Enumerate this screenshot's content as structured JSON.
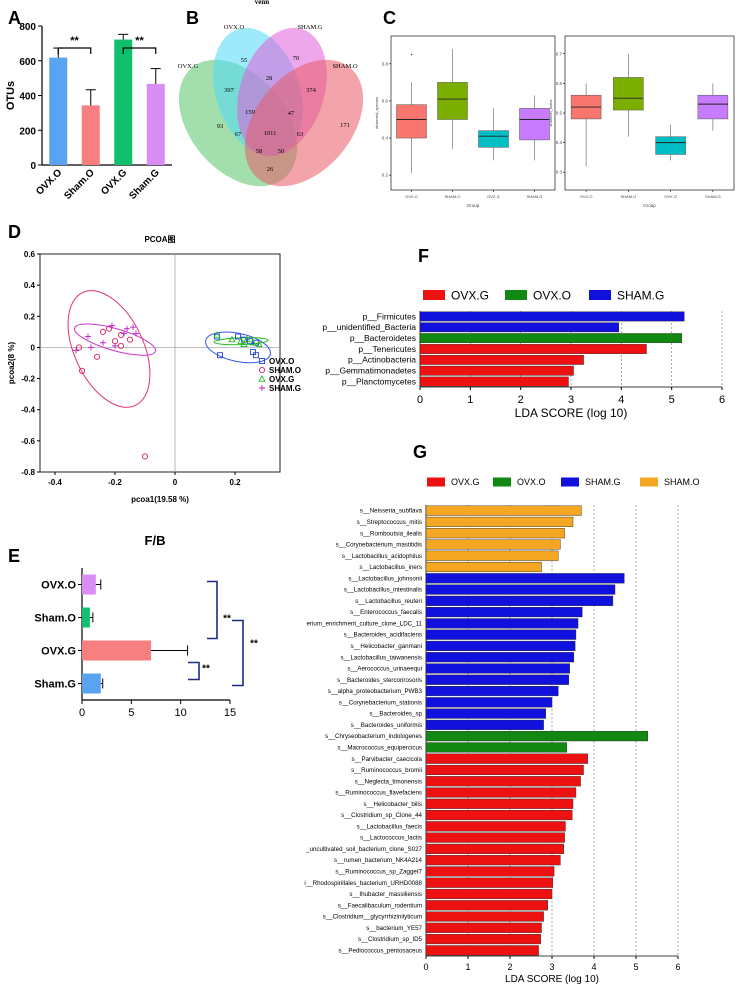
{
  "chart_data": [
    {
      "panel": "A",
      "type": "bar",
      "ylabel": "OTUs",
      "ylim": [
        0,
        800
      ],
      "yticks": [
        0,
        200,
        400,
        600,
        800
      ],
      "categories": [
        "OVX.O",
        "Sham.O",
        "OVX.G",
        "Sham.G"
      ],
      "values": [
        618,
        343,
        722,
        467
      ],
      "errors": [
        55,
        90,
        30,
        88
      ],
      "colors": [
        "#5aa3f0",
        "#f87f7f",
        "#11c06f",
        "#d98cf4"
      ],
      "significance": [
        {
          "pair": [
            "OVX.O",
            "Sham.O"
          ],
          "label": "**"
        },
        {
          "pair": [
            "OVX.G",
            "Sham.G"
          ],
          "label": "**"
        }
      ]
    },
    {
      "panel": "B",
      "type": "venn",
      "title": "venn",
      "sets": [
        "OVX.G",
        "OVX.O",
        "SHAM.G",
        "SHAM.O"
      ],
      "colors": [
        "#57c26a",
        "#4fd9f5",
        "#e05ed8",
        "#ea5a66"
      ],
      "counts": {
        "ovxo_only": "55",
        "shamg_only": "70",
        "ovxg_only": "93",
        "shamo_only": "171",
        "ovxg_ovxo": "397",
        "ovxo_shamg": "28",
        "shamg_shamo": "374",
        "ovxg_shamo": "26",
        "ovxg_ovxo_shamg": "159",
        "ovxo_shamg_shamo": "47",
        "ovxg_ovxo_shamo": "67",
        "ovxg_shamg_shamo": "63",
        "ovxg_ovxo_nonovxo": "58",
        "ovxg_shamo_pair2": "50",
        "all": "1011"
      }
    },
    {
      "panel": "C",
      "type": "box",
      "xlabel": "Group",
      "categories": [
        "OVX.O",
        "SHAM.O",
        "OVX.G",
        "SHAM.G"
      ],
      "colors": [
        "#f8766d",
        "#7cae00",
        "#00bfc4",
        "#c77cff"
      ],
      "plots": [
        {
          "ylabel": "observed_species",
          "yticks": [
            0.2,
            0.4,
            0.6,
            0.8
          ],
          "ylim": [
            0.12,
            0.95
          ],
          "boxes": [
            {
              "min": 0.21,
              "q1": 0.4,
              "median": 0.5,
              "q3": 0.58,
              "max": 0.7
            },
            {
              "min": 0.34,
              "q1": 0.5,
              "median": 0.61,
              "q3": 0.7,
              "max": 0.88
            },
            {
              "min": 0.28,
              "q1": 0.35,
              "median": 0.41,
              "q3": 0.44,
              "max": 0.56
            },
            {
              "min": 0.28,
              "q1": 0.39,
              "median": 0.5,
              "q3": 0.56,
              "max": 0.63
            }
          ],
          "outliers": [
            {
              "box": 0,
              "value": 0.85
            }
          ]
        },
        {
          "ylabel": "shannon_index",
          "yticks": [
            0.3,
            0.4,
            0.5,
            0.6,
            0.7
          ],
          "ylim": [
            0.24,
            0.76
          ],
          "boxes": [
            {
              "min": 0.32,
              "q1": 0.48,
              "median": 0.52,
              "q3": 0.56,
              "max": 0.6
            },
            {
              "min": 0.42,
              "q1": 0.51,
              "median": 0.55,
              "q3": 0.62,
              "max": 0.7
            },
            {
              "min": 0.34,
              "q1": 0.36,
              "median": 0.4,
              "q3": 0.42,
              "max": 0.46
            },
            {
              "min": 0.44,
              "q1": 0.48,
              "median": 0.53,
              "q3": 0.56,
              "max": 0.6
            }
          ],
          "outliers": []
        }
      ]
    },
    {
      "panel": "D",
      "type": "scatter",
      "title": "PCOA图",
      "xlabel": "pcoa1(19.58 %)",
      "ylabel": "pcoa2(8 %)",
      "xlim": [
        -0.45,
        0.35
      ],
      "ylim": [
        -0.8,
        0.6
      ],
      "xticks": [
        -0.4,
        -0.2,
        0,
        0.2
      ],
      "yticks": [
        -0.8,
        -0.6,
        -0.4,
        -0.2,
        0,
        0.2,
        0.4,
        0.6
      ],
      "series": [
        {
          "name": "OVX.O",
          "color": "#2244dd",
          "marker": "square",
          "points": [
            [
              0.14,
              0.07
            ],
            [
              0.15,
              -0.05
            ],
            [
              0.23,
              0.05
            ],
            [
              0.25,
              0.04
            ],
            [
              0.27,
              0.03
            ],
            [
              0.27,
              -0.05
            ],
            [
              0.21,
              0.07
            ],
            [
              0.26,
              -0.03
            ]
          ]
        },
        {
          "name": "SHAM.O",
          "color": "#dd2255",
          "marker": "circle",
          "points": [
            [
              -0.32,
              0.0
            ],
            [
              -0.31,
              -0.15
            ],
            [
              -0.26,
              -0.06
            ],
            [
              -0.22,
              0.12
            ],
            [
              -0.2,
              0.04
            ],
            [
              -0.18,
              0.08
            ],
            [
              -0.18,
              0.01
            ],
            [
              -0.15,
              0.05
            ],
            [
              -0.1,
              -0.7
            ],
            [
              -0.24,
              0.1
            ]
          ]
        },
        {
          "name": "OVX.G",
          "color": "#22bb22",
          "marker": "triangle",
          "points": [
            [
              0.14,
              0.08
            ],
            [
              0.19,
              0.05
            ],
            [
              0.22,
              0.04
            ],
            [
              0.24,
              0.05
            ],
            [
              0.26,
              0.03
            ],
            [
              0.28,
              0.02
            ],
            [
              0.23,
              0.02
            ]
          ]
        },
        {
          "name": "SHAM.G",
          "color": "#bb22cc",
          "marker": "plus",
          "points": [
            [
              -0.33,
              -0.02
            ],
            [
              -0.29,
              0.07
            ],
            [
              -0.24,
              0.03
            ],
            [
              -0.21,
              0.14
            ],
            [
              -0.2,
              0.01
            ],
            [
              -0.17,
              0.09
            ],
            [
              -0.16,
              0.12
            ],
            [
              -0.14,
              0.13
            ],
            [
              -0.13,
              0.09
            ],
            [
              -0.28,
              0.0
            ]
          ]
        }
      ],
      "ellipses": [
        {
          "name": "SHAM.O",
          "color": "#e0336a",
          "cx": -0.22,
          "cy": -0.01,
          "rx": 0.115,
          "ry": 0.4,
          "angle_deg": -25
        },
        {
          "name": "SHAM.G",
          "color": "#cc33cc",
          "cx": -0.2,
          "cy": 0.05,
          "rx": 0.14,
          "ry": 0.07,
          "angle_deg": 16
        },
        {
          "name": "OVX.O",
          "color": "#3355ee",
          "cx": 0.21,
          "cy": 0.0,
          "rx": 0.11,
          "ry": 0.09,
          "angle_deg": 12
        },
        {
          "name": "OVX.G",
          "color": "#22bb22",
          "cx": 0.22,
          "cy": 0.04,
          "rx": 0.09,
          "ry": 0.022,
          "angle_deg": -2
        }
      ]
    },
    {
      "panel": "E",
      "type": "bar",
      "orientation": "horizontal",
      "title": "F/B",
      "categories": [
        "OVX.O",
        "Sham.O",
        "OVX.G",
        "Sham.G"
      ],
      "values": [
        1.4,
        0.8,
        7.0,
        1.9
      ],
      "errors": [
        0.5,
        0.3,
        3.7,
        0.2
      ],
      "colors": [
        "#d98cf4",
        "#11c06f",
        "#f87f7f",
        "#5aa3f0"
      ],
      "xlim": [
        0,
        15
      ],
      "xticks": [
        0,
        5,
        10,
        15
      ],
      "significance": [
        "**",
        "**",
        "**"
      ]
    },
    {
      "panel": "F",
      "type": "bar",
      "orientation": "horizontal",
      "xlabel": "LDA SCORE (log 10)",
      "xlim": [
        0,
        6
      ],
      "xticks": [
        0,
        1,
        2,
        3,
        4,
        5,
        6
      ],
      "legend": [
        {
          "name": "OVX.G",
          "color": "#ee1111"
        },
        {
          "name": "OVX.O",
          "color": "#118811"
        },
        {
          "name": "SHAM.G",
          "color": "#1111dd"
        }
      ],
      "bars": [
        {
          "label": "p__Firmicutes",
          "value": 5.25,
          "group": 2
        },
        {
          "label": "p__unidentified_Bacteria",
          "value": 3.95,
          "group": 2
        },
        {
          "label": "p__Bacteroidetes",
          "value": 5.2,
          "group": 1
        },
        {
          "label": "p__Tenericutes",
          "value": 4.5,
          "group": 0
        },
        {
          "label": "p__Actinobacteria",
          "value": 3.25,
          "group": 0
        },
        {
          "label": "p__Gemmatimonadetes",
          "value": 3.05,
          "group": 0
        },
        {
          "label": "p__Planctomycetes",
          "value": 2.95,
          "group": 0
        }
      ]
    },
    {
      "panel": "G",
      "type": "bar",
      "orientation": "horizontal",
      "xlabel": "LDA SCORE (log 10)",
      "xlim": [
        0,
        6
      ],
      "xticks": [
        0,
        1,
        2,
        3,
        4,
        5,
        6
      ],
      "legend": [
        {
          "name": "OVX.G",
          "color": "#ee1111"
        },
        {
          "name": "OVX.O",
          "color": "#118811"
        },
        {
          "name": "SHAM.G",
          "color": "#1111dd"
        },
        {
          "name": "SHAM.O",
          "color": "#f5a623"
        }
      ],
      "bars": [
        {
          "label": "s__Neisseria_subflava",
          "value": 3.7,
          "group": 3
        },
        {
          "label": "s__Streptococcus_mitis",
          "value": 3.5,
          "group": 3
        },
        {
          "label": "s__Romboutsia_ilealis",
          "value": 3.3,
          "group": 3
        },
        {
          "label": "s__Corynebacterium_mastitidis",
          "value": 3.2,
          "group": 3
        },
        {
          "label": "s__Lactobacillus_acidophilus",
          "value": 3.15,
          "group": 3
        },
        {
          "label": "s__Lactobacillus_iners",
          "value": 2.75,
          "group": 3
        },
        {
          "label": "s__Lactobacillus_johnsonii",
          "value": 4.72,
          "group": 2
        },
        {
          "label": "s__Lactobacillus_intestinalis",
          "value": 4.5,
          "group": 2
        },
        {
          "label": "s__Lactobacillus_reuteri",
          "value": 4.45,
          "group": 2
        },
        {
          "label": "s__Enterococcus_faecalis",
          "value": 3.72,
          "group": 2
        },
        {
          "label": "erium_enrichment_culture_clone_LDC_11",
          "value": 3.62,
          "group": 2
        },
        {
          "label": "s__Bacteroides_acidifaciens",
          "value": 3.57,
          "group": 2
        },
        {
          "label": "s__Helicobacter_ganmani",
          "value": 3.55,
          "group": 2
        },
        {
          "label": "s__Lactobacillus_taiwanensis",
          "value": 3.52,
          "group": 2
        },
        {
          "label": "s__Aerococcus_urinaeequi",
          "value": 3.42,
          "group": 2
        },
        {
          "label": "s__Bacteroides_stercorirosoris",
          "value": 3.4,
          "group": 2
        },
        {
          "label": "s__alpha_proteobacterium_PWB3",
          "value": 3.15,
          "group": 2
        },
        {
          "label": "s__Corynebacterium_stationis",
          "value": 3.0,
          "group": 2
        },
        {
          "label": "s__Bacteroides_sp",
          "value": 2.85,
          "group": 2
        },
        {
          "label": "s__Bacteroides_uniformis",
          "value": 2.8,
          "group": 2
        },
        {
          "label": "s__Chryseobacterium_indologenes",
          "value": 5.28,
          "group": 1
        },
        {
          "label": "s__Macrococcus_equipercicus",
          "value": 3.35,
          "group": 1
        },
        {
          "label": "s__Parvibacter_caecicola",
          "value": 3.85,
          "group": 0
        },
        {
          "label": "s__Ruminococcus_bromii",
          "value": 3.75,
          "group": 0
        },
        {
          "label": "s__Neglecta_timonensis",
          "value": 3.68,
          "group": 0
        },
        {
          "label": "s__Ruminococcus_flavefaciens",
          "value": 3.57,
          "group": 0
        },
        {
          "label": "s__Helicobacter_bilis",
          "value": 3.5,
          "group": 0
        },
        {
          "label": "s__Clostridium_sp_Clone_44",
          "value": 3.48,
          "group": 0
        },
        {
          "label": "s__Lactobacillus_faecis",
          "value": 3.32,
          "group": 0
        },
        {
          "label": "s__Lactococcus_lactis",
          "value": 3.3,
          "group": 0
        },
        {
          "label": "_uncultivated_soil_bacterium_clone_S027",
          "value": 3.28,
          "group": 0
        },
        {
          "label": "s__rumen_bacterium_NK4A214",
          "value": 3.2,
          "group": 0
        },
        {
          "label": "s__Ruminococcus_sp_Zagget7",
          "value": 3.05,
          "group": 0
        },
        {
          "label": "i__Rhodospirillales_bacterium_URHD0088",
          "value": 3.02,
          "group": 0
        },
        {
          "label": "s__Ihubacter_massiliensis",
          "value": 3.0,
          "group": 0
        },
        {
          "label": "s__Faecalibaculum_rodentium",
          "value": 2.9,
          "group": 0
        },
        {
          "label": "s__Clostridium__glycyrrhizinilyticum",
          "value": 2.8,
          "group": 0
        },
        {
          "label": "s__bacterium_YE57",
          "value": 2.75,
          "group": 0
        },
        {
          "label": "s__Clostridium_sp_ID5",
          "value": 2.73,
          "group": 0
        },
        {
          "label": "s__Pediococcus_pentosaceus",
          "value": 2.68,
          "group": 0
        }
      ]
    }
  ]
}
